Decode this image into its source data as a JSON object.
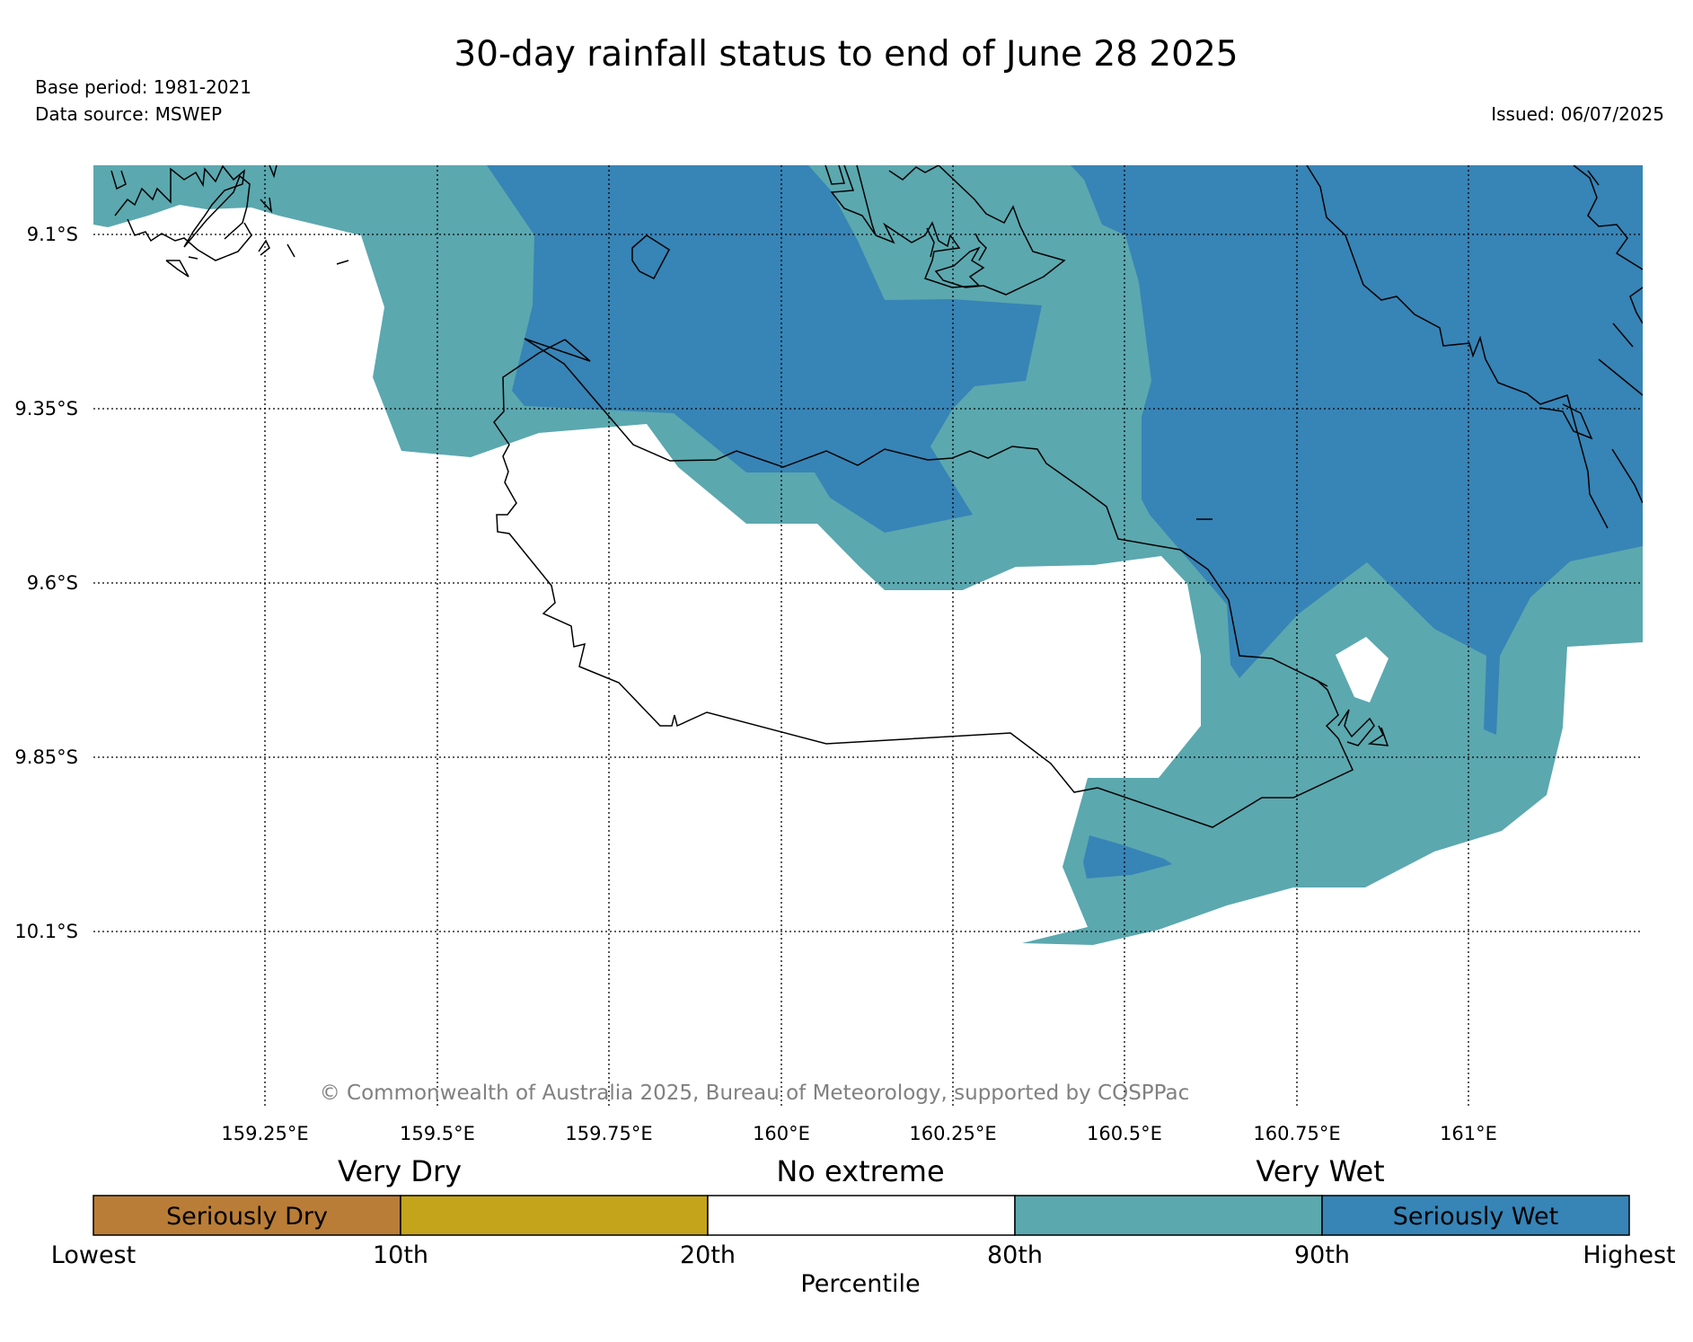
{
  "title": "30-day rainfall status to end of June 28 2025",
  "base_period": "Base period: 1981-2021",
  "data_source": "Data source: MSWEP",
  "issued": "Issued: 06/07/2025",
  "copyright": "© Commonwealth of Australia 2025, Bureau of Meteorology, supported by COSPPac",
  "lat_labels": [
    "9.1°S",
    "9.35°S",
    "9.6°S",
    "9.85°S",
    "10.1°S"
  ],
  "lon_labels": [
    "159.25°E",
    "159.5°E",
    "159.75°E",
    "160°E",
    "160.25°E",
    "160.5°E",
    "160.75°E",
    "161°E"
  ],
  "colors": {
    "very_wet": "#5ba8af",
    "seriously_wet": "#3784b6",
    "very_dry": "#c4a41b",
    "seriously_dry": "#b97d37",
    "no_extreme": "#ffffff"
  },
  "legend": {
    "group_labels": [
      "Very Dry",
      "No extreme",
      "Very Wet"
    ],
    "box_labels": [
      "Seriously Dry",
      "",
      "",
      "",
      "Seriously Wet"
    ],
    "ticks": [
      "Lowest",
      "10th",
      "20th",
      "80th",
      "90th",
      "Highest"
    ],
    "axis_label": "Percentile"
  }
}
